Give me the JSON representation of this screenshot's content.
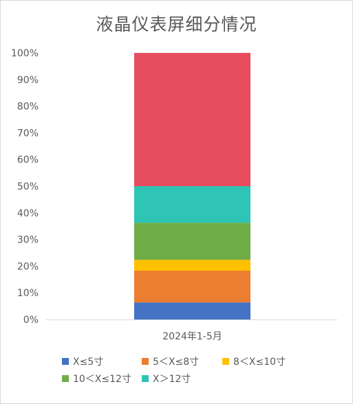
{
  "chart_data": {
    "type": "bar",
    "stacked": true,
    "normalized": true,
    "title": "液晶仪表屏细分情况",
    "categories": [
      "2024年1-5月"
    ],
    "series": [
      {
        "name": "X≤5寸",
        "values": [
          6.4
        ],
        "color": "#4472C4"
      },
      {
        "name": "5＜X≤8寸",
        "values": [
          11.9
        ],
        "color": "#ED7D31"
      },
      {
        "name": "8＜X≤10寸",
        "values": [
          4.1
        ],
        "color": "#FFC000"
      },
      {
        "name": "10＜X≤12寸",
        "values": [
          13.9
        ],
        "color": "#70AD47"
      },
      {
        "name": "X＞12寸",
        "values": [
          13.7
        ],
        "color": "#2EC4B6"
      },
      {
        "name": "",
        "values": [
          50.0
        ],
        "color": "#E74C5E"
      }
    ],
    "ylim": [
      0,
      100
    ],
    "yticks": [
      "0%",
      "10%",
      "20%",
      "30%",
      "40%",
      "50%",
      "60%",
      "70%",
      "80%",
      "90%",
      "100%"
    ],
    "grid": false,
    "legend": "bottom"
  }
}
